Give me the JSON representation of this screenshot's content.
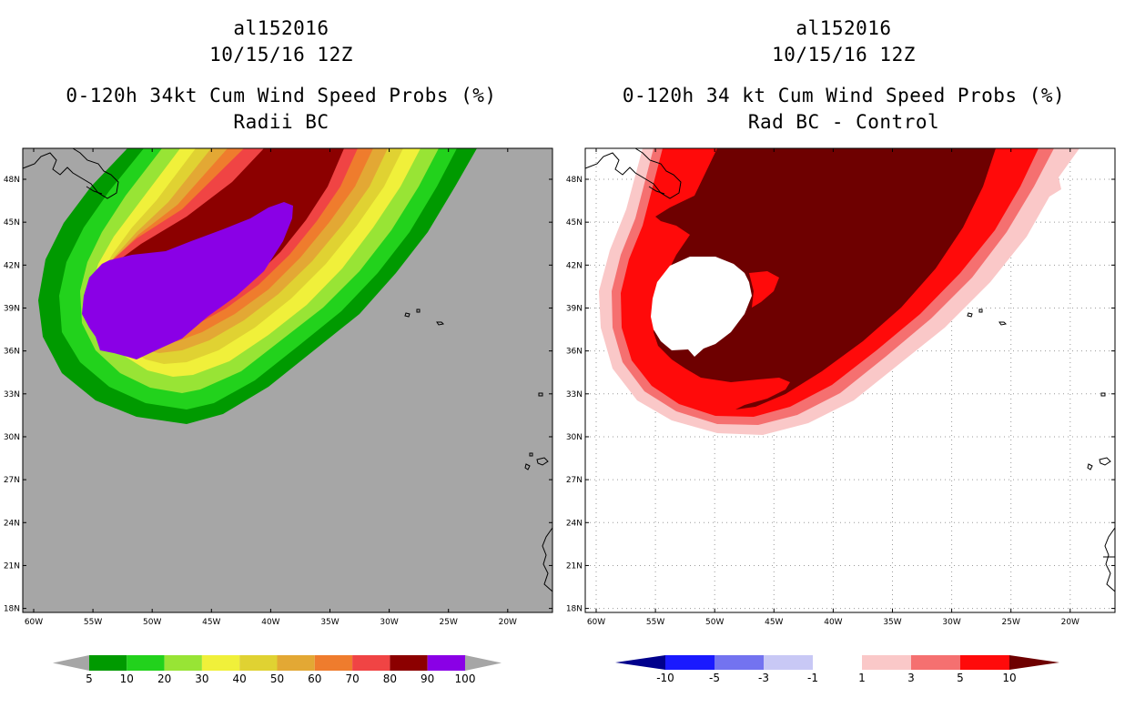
{
  "left_panel": {
    "title_lines": [
      "al152016",
      "10/15/16 12Z",
      "0-120h 34kt Cum Wind Speed Probs (%)",
      "Radii BC"
    ],
    "lat_labels": [
      "48N",
      "45N",
      "42N",
      "39N",
      "36N",
      "33N",
      "30N",
      "27N",
      "24N",
      "21N",
      "18N"
    ],
    "lon_labels": [
      "60W",
      "55W",
      "50W",
      "45W",
      "40W",
      "35W",
      "30W",
      "25W",
      "20W"
    ],
    "colorbar": {
      "labels": [
        "5",
        "10",
        "20",
        "30",
        "40",
        "50",
        "60",
        "70",
        "80",
        "90",
        "100"
      ],
      "colors": [
        "#009a00",
        "#22d21c",
        "#98e435",
        "#f0f03a",
        "#e0d232",
        "#e3a834",
        "#ef7c2d",
        "#f04444",
        "#8c0000",
        "#8a00e6"
      ],
      "end_color": "#a6a6a6"
    },
    "background_color": "#a6a6a6"
  },
  "right_panel": {
    "title_lines": [
      "al152016",
      "10/15/16 12Z",
      "0-120h 34 kt Cum Wind Speed Probs (%)",
      "Rad BC - Control"
    ],
    "lat_labels": [
      "48N",
      "45N",
      "42N",
      "39N",
      "36N",
      "33N",
      "30N",
      "27N",
      "24N",
      "21N",
      "18N"
    ],
    "lon_labels": [
      "60W",
      "55W",
      "50W",
      "45W",
      "40W",
      "35W",
      "30W",
      "25W",
      "20W"
    ],
    "colorbar": {
      "labels": [
        "-10",
        "-5",
        "-3",
        "-1",
        "1",
        "3",
        "5",
        "10"
      ],
      "colors": [
        "#00008c",
        "#1a1aff",
        "#7373f0",
        "#c8c8f5",
        "#ffffff",
        "#fac8c8",
        "#f57070",
        "#ff0a0a",
        "#6e0000"
      ]
    },
    "background_color": "#ffffff"
  }
}
